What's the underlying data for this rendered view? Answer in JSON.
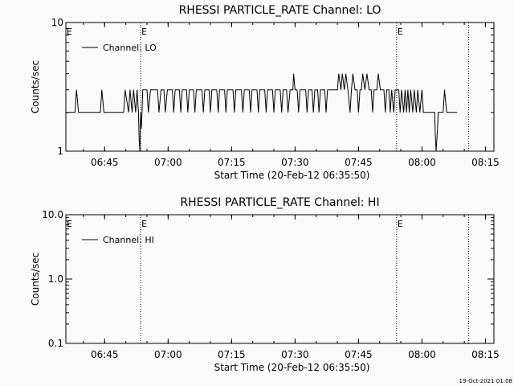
{
  "footer_timestamp": "19-Oct-2021 01:08",
  "chart_data": [
    {
      "type": "line",
      "title": "RHESSI PARTICLE_RATE Channel: LO",
      "xlabel": "Start Time (20-Feb-12 06:35:50)",
      "ylabel": "Counts/sec",
      "yscale": "log",
      "xlim": [
        "06:35:50",
        "08:17:00"
      ],
      "ylim": [
        1,
        10
      ],
      "x_ticks": [
        "06:45",
        "07:00",
        "07:15",
        "07:30",
        "07:45",
        "08:00",
        "08:15"
      ],
      "y_ticks": [
        "1",
        "10"
      ],
      "legend": "top-left",
      "markers": [
        {
          "time": "06:53:30",
          "label": "E"
        },
        {
          "time": "07:54:00",
          "label": "E"
        },
        {
          "time": "08:11:00",
          "label": ""
        }
      ],
      "marker_edge_label": "E",
      "series": [
        {
          "name": "Channel: LO",
          "color": "#000000",
          "points": [
            [
              "06:35:50",
              2
            ],
            [
              "06:38:00",
              2
            ],
            [
              "06:38:20",
              3
            ],
            [
              "06:38:50",
              2
            ],
            [
              "06:44:00",
              2
            ],
            [
              "06:44:20",
              3
            ],
            [
              "06:44:50",
              2
            ],
            [
              "06:49:30",
              2
            ],
            [
              "06:49:50",
              3
            ],
            [
              "06:50:40",
              2
            ],
            [
              "06:51:00",
              3
            ],
            [
              "06:51:30",
              2
            ],
            [
              "06:51:50",
              3
            ],
            [
              "06:52:20",
              2
            ],
            [
              "06:52:40",
              3
            ],
            [
              "06:53:00",
              2
            ],
            [
              "06:53:10",
              1.2
            ],
            [
              "06:53:20",
              1
            ],
            [
              "06:53:30",
              2
            ],
            [
              "06:53:40",
              1.5
            ],
            [
              "06:53:50",
              2
            ],
            [
              "06:54:00",
              3
            ],
            [
              "06:55:00",
              3
            ],
            [
              "06:55:20",
              2
            ],
            [
              "06:55:50",
              3
            ],
            [
              "06:57:30",
              3
            ],
            [
              "06:57:50",
              2
            ],
            [
              "06:58:20",
              3
            ],
            [
              "06:59:00",
              3
            ],
            [
              "06:59:20",
              2
            ],
            [
              "06:59:50",
              3
            ],
            [
              "07:01:00",
              3
            ],
            [
              "07:01:20",
              2
            ],
            [
              "07:01:40",
              3
            ],
            [
              "07:02:40",
              3
            ],
            [
              "07:03:00",
              2
            ],
            [
              "07:03:20",
              3
            ],
            [
              "07:04:20",
              3
            ],
            [
              "07:04:40",
              2
            ],
            [
              "07:05:00",
              3
            ],
            [
              "07:06:00",
              3
            ],
            [
              "07:06:20",
              2
            ],
            [
              "07:06:40",
              3
            ],
            [
              "07:08:00",
              3
            ],
            [
              "07:08:20",
              2
            ],
            [
              "07:08:40",
              3
            ],
            [
              "07:09:40",
              3
            ],
            [
              "07:10:00",
              2
            ],
            [
              "07:10:20",
              3
            ],
            [
              "07:11:30",
              3
            ],
            [
              "07:11:50",
              2
            ],
            [
              "07:12:10",
              3
            ],
            [
              "07:13:20",
              3
            ],
            [
              "07:13:40",
              2
            ],
            [
              "07:14:00",
              3
            ],
            [
              "07:15:20",
              3
            ],
            [
              "07:15:40",
              2
            ],
            [
              "07:16:00",
              3
            ],
            [
              "07:17:20",
              3
            ],
            [
              "07:17:40",
              2
            ],
            [
              "07:18:00",
              3
            ],
            [
              "07:19:10",
              3
            ],
            [
              "07:19:30",
              2
            ],
            [
              "07:19:50",
              3
            ],
            [
              "07:21:00",
              3
            ],
            [
              "07:21:20",
              2
            ],
            [
              "07:21:40",
              3
            ],
            [
              "07:22:50",
              3
            ],
            [
              "07:23:10",
              2
            ],
            [
              "07:23:30",
              3
            ],
            [
              "07:24:40",
              3
            ],
            [
              "07:25:00",
              2
            ],
            [
              "07:25:20",
              3
            ],
            [
              "07:26:30",
              3
            ],
            [
              "07:26:50",
              2
            ],
            [
              "07:27:10",
              3
            ],
            [
              "07:28:00",
              3
            ],
            [
              "07:28:20",
              2
            ],
            [
              "07:28:50",
              3
            ],
            [
              "07:29:30",
              3
            ],
            [
              "07:29:40",
              4
            ],
            [
              "07:30:00",
              3
            ],
            [
              "07:30:30",
              3
            ],
            [
              "07:30:50",
              2
            ],
            [
              "07:31:10",
              3
            ],
            [
              "07:32:30",
              3
            ],
            [
              "07:32:50",
              2
            ],
            [
              "07:33:10",
              3
            ],
            [
              "07:34:00",
              3
            ],
            [
              "07:34:20",
              2
            ],
            [
              "07:34:40",
              3
            ],
            [
              "07:35:20",
              3
            ],
            [
              "07:35:40",
              2
            ],
            [
              "07:36:00",
              3
            ],
            [
              "07:37:00",
              3
            ],
            [
              "07:37:20",
              2
            ],
            [
              "07:37:40",
              3
            ],
            [
              "07:40:00",
              3
            ],
            [
              "07:40:20",
              4
            ],
            [
              "07:40:50",
              3
            ],
            [
              "07:41:10",
              4
            ],
            [
              "07:41:40",
              3
            ],
            [
              "07:42:00",
              4
            ],
            [
              "07:42:30",
              3
            ],
            [
              "07:43:00",
              2
            ],
            [
              "07:43:20",
              3
            ],
            [
              "07:43:40",
              4
            ],
            [
              "07:44:10",
              3
            ],
            [
              "07:44:40",
              3
            ],
            [
              "07:45:00",
              2
            ],
            [
              "07:45:20",
              3
            ],
            [
              "07:45:40",
              3
            ],
            [
              "07:46:00",
              4
            ],
            [
              "07:46:30",
              3
            ],
            [
              "07:47:00",
              4
            ],
            [
              "07:47:30",
              3
            ],
            [
              "07:48:00",
              3
            ],
            [
              "07:48:20",
              2
            ],
            [
              "07:48:40",
              3
            ],
            [
              "07:49:20",
              3
            ],
            [
              "07:49:40",
              4
            ],
            [
              "07:50:10",
              3
            ],
            [
              "07:51:00",
              3
            ],
            [
              "07:51:20",
              2
            ],
            [
              "07:51:40",
              3
            ],
            [
              "07:52:10",
              3
            ],
            [
              "07:52:30",
              2
            ],
            [
              "07:52:50",
              3
            ],
            [
              "07:53:20",
              2
            ],
            [
              "07:53:40",
              3
            ],
            [
              "07:54:30",
              3
            ],
            [
              "07:54:50",
              2
            ],
            [
              "07:55:10",
              3
            ],
            [
              "07:55:40",
              2
            ],
            [
              "07:56:00",
              3
            ],
            [
              "07:56:20",
              2
            ],
            [
              "07:56:40",
              3
            ],
            [
              "07:57:00",
              2
            ],
            [
              "07:57:20",
              3
            ],
            [
              "07:57:50",
              2
            ],
            [
              "07:58:10",
              3
            ],
            [
              "07:58:40",
              2
            ],
            [
              "07:59:00",
              3
            ],
            [
              "07:59:30",
              2
            ],
            [
              "08:00:00",
              3
            ],
            [
              "08:00:20",
              2
            ],
            [
              "08:03:00",
              2
            ],
            [
              "08:03:10",
              1.3
            ],
            [
              "08:03:20",
              1
            ],
            [
              "08:03:40",
              1.5
            ],
            [
              "08:03:50",
              2
            ],
            [
              "08:05:00",
              2
            ],
            [
              "08:05:20",
              3
            ],
            [
              "08:05:50",
              2
            ],
            [
              "08:08:20",
              2
            ]
          ]
        }
      ]
    },
    {
      "type": "line",
      "title": "RHESSI PARTICLE_RATE Channel: HI",
      "xlabel": "Start Time (20-Feb-12 06:35:50)",
      "ylabel": "Counts/sec",
      "yscale": "log",
      "xlim": [
        "06:35:50",
        "08:17:00"
      ],
      "ylim": [
        0.1,
        10
      ],
      "x_ticks": [
        "06:45",
        "07:00",
        "07:15",
        "07:30",
        "07:45",
        "08:00",
        "08:15"
      ],
      "y_ticks": [
        "0.1",
        "1.0",
        "10.0"
      ],
      "legend": "top-left",
      "markers": [
        {
          "time": "06:53:30",
          "label": "E"
        },
        {
          "time": "07:54:00",
          "label": "E"
        },
        {
          "time": "08:11:00",
          "label": ""
        }
      ],
      "marker_edge_label": "E",
      "series": [
        {
          "name": "Channel: HI",
          "color": "#000000",
          "points": []
        }
      ]
    }
  ]
}
